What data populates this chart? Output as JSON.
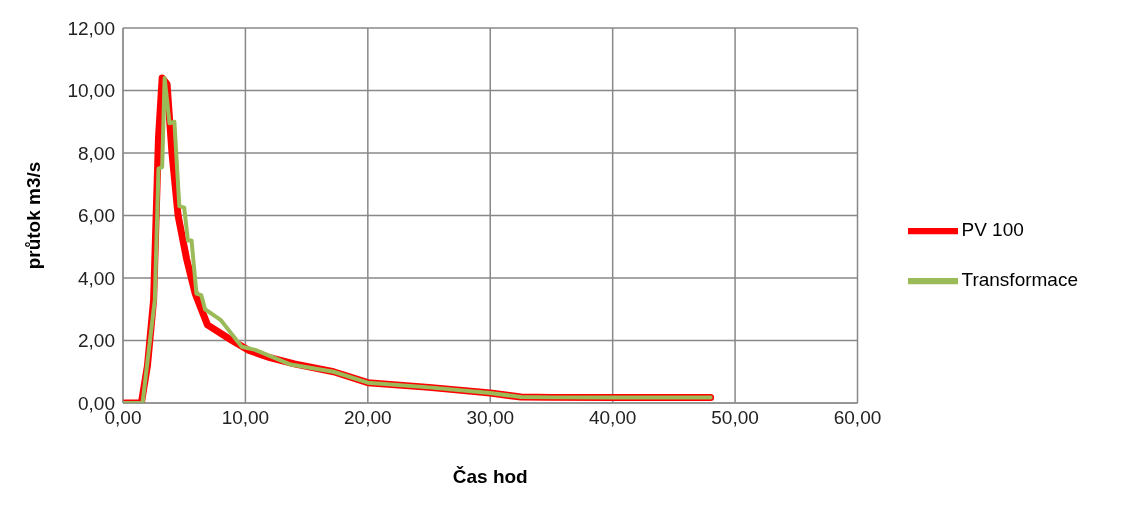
{
  "chart_data": {
    "type": "line",
    "xlabel": "Čas hod",
    "ylabel": "průtok m3/s",
    "xlim": [
      0,
      60
    ],
    "ylim": [
      0,
      12
    ],
    "xticks": [
      {
        "value": 0,
        "label": "0,00"
      },
      {
        "value": 10,
        "label": "10,00"
      },
      {
        "value": 20,
        "label": "20,00"
      },
      {
        "value": 30,
        "label": "30,00"
      },
      {
        "value": 40,
        "label": "40,00"
      },
      {
        "value": 50,
        "label": "50,00"
      },
      {
        "value": 60,
        "label": "60,00"
      }
    ],
    "yticks": [
      {
        "value": 0,
        "label": "0,00"
      },
      {
        "value": 2,
        "label": "2,00"
      },
      {
        "value": 4,
        "label": "4,00"
      },
      {
        "value": 6,
        "label": "6,00"
      },
      {
        "value": 8,
        "label": "8,00"
      },
      {
        "value": 10,
        "label": "10,00"
      },
      {
        "value": 12,
        "label": "12,00"
      }
    ],
    "grid": true,
    "legend": "right",
    "marker": "none",
    "line_style": "solid",
    "series": [
      {
        "name": "PV 100",
        "color": "#ff0000",
        "x": [
          0,
          1.5,
          2.0,
          2.5,
          2.9,
          3.2,
          3.6,
          4.0,
          4.5,
          5.2,
          5.9,
          6.9,
          8.9,
          10.3,
          12,
          14,
          17.2,
          20,
          25,
          30,
          32.5,
          35,
          40,
          45,
          48
        ],
        "values": [
          0,
          0,
          1.2,
          3.3,
          8.5,
          10.4,
          10.2,
          8.0,
          6.0,
          4.6,
          3.5,
          2.5,
          2.0,
          1.68,
          1.45,
          1.25,
          1.0,
          0.65,
          0.5,
          0.32,
          0.19,
          0.18,
          0.18,
          0.18,
          0.18
        ]
      },
      {
        "name": "Transformace",
        "color": "#9bbb59",
        "x": [
          0,
          1.6,
          2.2,
          2.6,
          2.9,
          3.2,
          3.4,
          3.8,
          4.2,
          4.6,
          5.0,
          5.3,
          5.6,
          6.0,
          6.4,
          6.7,
          8.0,
          9.7,
          10.8,
          13.7,
          17.2,
          20,
          25,
          30,
          32.5,
          35,
          40,
          45,
          48
        ],
        "values": [
          0,
          0,
          2.0,
          3.3,
          7.5,
          7.55,
          10.4,
          8.95,
          9.0,
          6.3,
          6.25,
          5.2,
          5.2,
          3.5,
          3.45,
          3.0,
          2.65,
          1.8,
          1.7,
          1.23,
          1.0,
          0.65,
          0.5,
          0.32,
          0.19,
          0.18,
          0.18,
          0.18,
          0.18
        ]
      }
    ]
  }
}
